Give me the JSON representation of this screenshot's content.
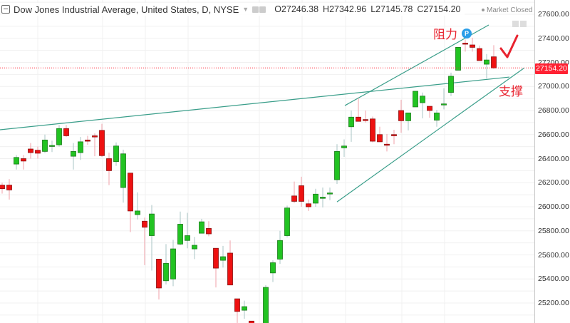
{
  "header": {
    "title": "Dow Jones Industrial Average, United States, D, NYSE",
    "open": "O27246.38",
    "high": "H27342.96",
    "low": "L27145.78",
    "close": "C27154.20",
    "market_status": "Market Closed"
  },
  "annotations": {
    "resistance": "阻力",
    "support": "支撑",
    "badge": "P"
  },
  "colors": {
    "up": "#22c322",
    "down": "#ee1111",
    "trendline": "#3a9e8a",
    "last_price": "#ff2233"
  },
  "chart_data": {
    "type": "candlestick",
    "title": "Dow Jones Industrial Average, United States, D, NYSE",
    "ylim": [
      25100,
      27650
    ],
    "grid": true,
    "y_ticks": [
      "27600.00",
      "27400.00",
      "27200.00",
      "27000.00",
      "26800.00",
      "26600.00",
      "26400.00",
      "26200.00",
      "26000.00",
      "25800.00",
      "25600.00",
      "25400.00",
      "25200.00"
    ],
    "last_price": "27154.20",
    "ohlc": [
      [
        26180,
        26200,
        26110,
        26150
      ],
      [
        26180,
        26230,
        26060,
        26140
      ],
      [
        26355,
        26430,
        26310,
        26410
      ],
      [
        26400,
        26430,
        26310,
        26380
      ],
      [
        26480,
        26530,
        26400,
        26450
      ],
      [
        26470,
        26500,
        26400,
        26445
      ],
      [
        26460,
        26600,
        26445,
        26555
      ],
      [
        26505,
        26550,
        26455,
        26510
      ],
      [
        26515,
        26680,
        26500,
        26650
      ],
      [
        26650,
        26680,
        26580,
        26590
      ],
      [
        26420,
        26530,
        26310,
        26460
      ],
      [
        26450,
        26580,
        26390,
        26540
      ],
      [
        26555,
        26590,
        26515,
        26545
      ],
      [
        26590,
        26610,
        26420,
        26580
      ],
      [
        26635,
        26690,
        26415,
        26425
      ],
      [
        26400,
        26450,
        26180,
        26300
      ],
      [
        26375,
        26535,
        26340,
        26505
      ],
      [
        26160,
        26475,
        26035,
        26440
      ],
      [
        26280,
        26280,
        25790,
        25965
      ],
      [
        25935,
        26120,
        25895,
        25965
      ],
      [
        25880,
        25910,
        25515,
        25830
      ],
      [
        25760,
        26015,
        25470,
        25940
      ],
      [
        25565,
        25565,
        25230,
        25325
      ],
      [
        25385,
        25690,
        25355,
        25530
      ],
      [
        25400,
        25725,
        25340,
        25650
      ],
      [
        25690,
        25960,
        25680,
        25855
      ],
      [
        25720,
        25950,
        25655,
        25760
      ],
      [
        25650,
        25750,
        25565,
        25680
      ],
      [
        25780,
        25900,
        25780,
        25875
      ],
      [
        25820,
        25880,
        25755,
        25775
      ],
      [
        25655,
        25655,
        25330,
        25490
      ],
      [
        25555,
        25675,
        25495,
        25585
      ],
      [
        25615,
        25720,
        25350,
        25350
      ],
      [
        25235,
        25235,
        25035,
        25130
      ],
      [
        25140,
        25220,
        25070,
        25170
      ],
      [
        25050,
        25050,
        24990,
        25020
      ],
      null,
      [
        24990,
        25348,
        24990,
        25330
      ],
      [
        25450,
        25555,
        25375,
        25535
      ],
      [
        25565,
        25800,
        25525,
        25720
      ],
      [
        25760,
        26010,
        25745,
        25990
      ],
      [
        26090,
        26210,
        26030,
        26045
      ],
      [
        26175,
        26250,
        26000,
        26045
      ],
      [
        26025,
        26060,
        25965,
        26000
      ],
      [
        26030,
        26150,
        26000,
        26105
      ],
      [
        26070,
        26160,
        25995,
        26080
      ],
      [
        26110,
        26160,
        26055,
        26115
      ],
      [
        26225,
        26520,
        26190,
        26460
      ],
      [
        26490,
        26560,
        26415,
        26505
      ],
      [
        26665,
        26800,
        26540,
        26745
      ],
      [
        26745,
        26905,
        26710,
        26710
      ],
      [
        26725,
        26800,
        26700,
        26720
      ],
      [
        26730,
        26750,
        26535,
        26545
      ],
      [
        26600,
        26665,
        26540,
        26540
      ],
      [
        26520,
        26605,
        26460,
        26515
      ],
      [
        26600,
        26640,
        26520,
        26590
      ],
      [
        26800,
        26890,
        26615,
        26715
      ],
      [
        26715,
        26780,
        26635,
        26780
      ],
      [
        26830,
        26960,
        26830,
        26960
      ],
      [
        26865,
        26950,
        26735,
        26920
      ],
      [
        26835,
        26835,
        26740,
        26800
      ],
      [
        26720,
        26805,
        26665,
        26780
      ],
      [
        26850,
        26985,
        26810,
        26855
      ],
      [
        26950,
        27115,
        26920,
        27085
      ],
      [
        27135,
        27330,
        27135,
        27325
      ],
      [
        27360,
        27390,
        27290,
        27355
      ],
      [
        27345,
        27405,
        27290,
        27325
      ],
      [
        27315,
        27340,
        27215,
        27215
      ],
      [
        27185,
        27270,
        27065,
        27220
      ],
      [
        27246.38,
        27342.96,
        27145.78,
        27154.2
      ]
    ],
    "trendlines": [
      {
        "from": [
          -0.3,
          26640
        ],
        "to": [
          71.2,
          27078
        ]
      },
      {
        "from": [
          48.1,
          26841
        ],
        "to": [
          68.3,
          27511
        ]
      },
      {
        "from": [
          47,
          26041
        ],
        "to": [
          73.3,
          27155
        ]
      }
    ]
  }
}
